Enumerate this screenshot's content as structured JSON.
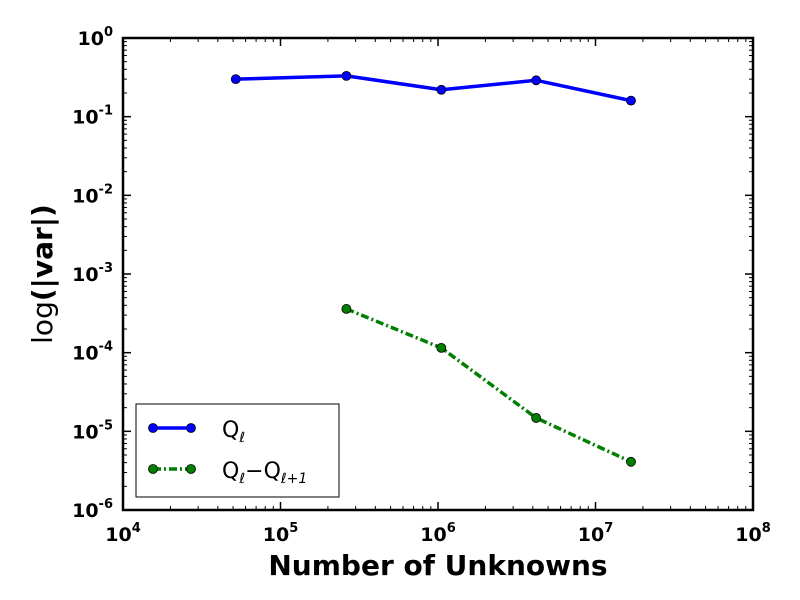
{
  "chart_data": {
    "type": "line",
    "xscale": "log",
    "yscale": "log",
    "xlim": [
      10000,
      100000000
    ],
    "ylim": [
      1e-06,
      1
    ],
    "xlabel": "Number of Unknowns",
    "ylabel": {
      "prefix": "log",
      "bold": "(|var|)"
    },
    "xticks": [
      {
        "base": "10",
        "exp": "4",
        "value": 10000
      },
      {
        "base": "10",
        "exp": "5",
        "value": 100000
      },
      {
        "base": "10",
        "exp": "6",
        "value": 1000000
      },
      {
        "base": "10",
        "exp": "7",
        "value": 10000000
      },
      {
        "base": "10",
        "exp": "8",
        "value": 100000000
      }
    ],
    "yticks": [
      {
        "base": "10",
        "exp": "0",
        "value": 1
      },
      {
        "base": "10",
        "exp": "-1",
        "value": 0.1
      },
      {
        "base": "10",
        "exp": "-2",
        "value": 0.01
      },
      {
        "base": "10",
        "exp": "-3",
        "value": 0.001
      },
      {
        "base": "10",
        "exp": "-4",
        "value": 0.0001
      },
      {
        "base": "10",
        "exp": "-5",
        "value": 1e-05
      },
      {
        "base": "10",
        "exp": "-6",
        "value": 1e-06
      }
    ],
    "legend_placement": "lower-left",
    "series": [
      {
        "id": "q",
        "legend": {
          "main": "Q",
          "sub": "ℓ"
        },
        "color": "#0000ff",
        "style": "solid",
        "x": [
          52000,
          262000,
          1050000,
          4200000,
          16800000
        ],
        "y": [
          0.3,
          0.33,
          0.22,
          0.29,
          0.16
        ]
      },
      {
        "id": "dq",
        "legend": {
          "main": "Q",
          "sub": "ℓ",
          "op": "−",
          "main2": "Q",
          "sub2": "ℓ+1"
        },
        "color": "#007f00",
        "style": "dashdot",
        "x": [
          262000,
          1050000,
          4200000,
          16800000
        ],
        "y": [
          0.00036,
          0.000115,
          1.48e-05,
          4.1e-06
        ]
      }
    ]
  }
}
